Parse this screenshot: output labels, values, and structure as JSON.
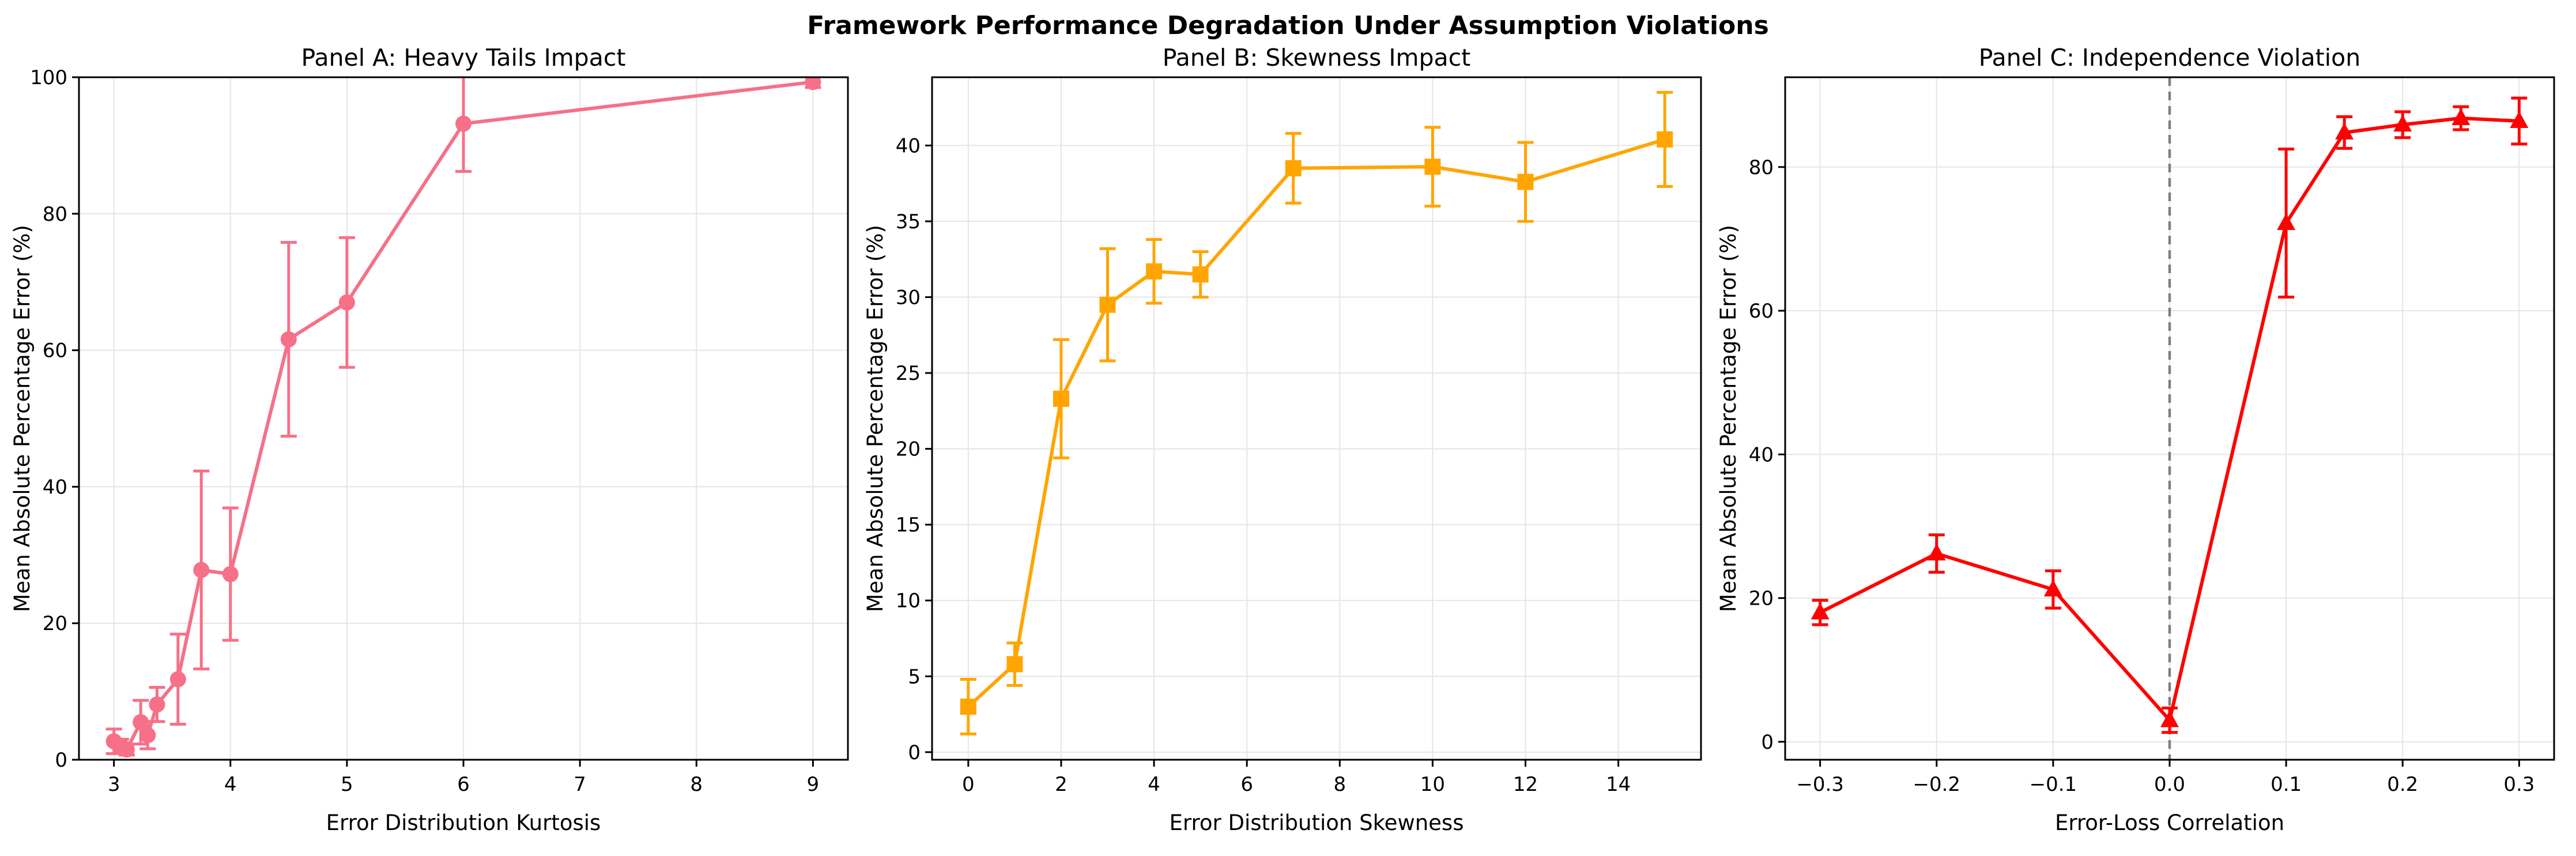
{
  "figure": {
    "title": "Framework Performance Degradation Under Assumption Violations",
    "background": "#FFFFFF",
    "text_color": "#000000",
    "grid_color": "#E5E5E5",
    "spine_color": "#000000"
  },
  "chart_data": [
    {
      "type": "line",
      "title": "Panel A: Heavy Tails Impact",
      "xlabel": "Error Distribution Kurtosis",
      "ylabel": "Mean Absolute Percentage Error (%)",
      "series_color": "#F67088",
      "marker": "circle",
      "grid": true,
      "x": [
        3.0,
        3.06,
        3.11,
        3.23,
        3.29,
        3.37,
        3.55,
        3.75,
        4.0,
        4.5,
        5.0,
        6.0,
        9.0
      ],
      "y": [
        2.7,
        2.0,
        1.5,
        5.5,
        3.6,
        8.1,
        11.8,
        27.8,
        27.2,
        61.6,
        67.0,
        93.2,
        99.3
      ],
      "yerr": [
        1.8,
        1.0,
        0.8,
        3.2,
        2.0,
        2.5,
        6.6,
        14.5,
        9.7,
        14.2,
        9.5,
        7.0,
        0.8
      ],
      "xlim": [
        2.7,
        9.3
      ],
      "ylim": [
        0,
        100
      ],
      "xticks": [
        3,
        4,
        5,
        6,
        7,
        8,
        9
      ],
      "xtick_labels": [
        "3",
        "4",
        "5",
        "6",
        "7",
        "8",
        "9"
      ],
      "yticks": [
        0,
        20,
        40,
        60,
        80,
        100
      ],
      "ytick_labels": [
        "0",
        "20",
        "40",
        "60",
        "80",
        "100"
      ]
    },
    {
      "type": "line",
      "title": "Panel B: Skewness Impact",
      "xlabel": "Error Distribution Skewness",
      "ylabel": "Mean Absolute Percentage Error (%)",
      "series_color": "#FFA500",
      "marker": "square",
      "grid": true,
      "x": [
        0,
        1,
        2,
        3,
        4,
        5,
        7,
        10,
        12,
        15
      ],
      "y": [
        3.0,
        5.8,
        23.3,
        29.5,
        31.7,
        31.5,
        38.5,
        38.6,
        37.6,
        40.4
      ],
      "yerr": [
        1.8,
        1.4,
        3.9,
        3.7,
        2.1,
        1.5,
        2.3,
        2.6,
        2.6,
        3.1
      ],
      "xlim": [
        -0.78,
        15.78
      ],
      "ylim": [
        -0.5,
        44.5
      ],
      "xticks": [
        0,
        2,
        4,
        6,
        8,
        10,
        12,
        14
      ],
      "xtick_labels": [
        "0",
        "2",
        "4",
        "6",
        "8",
        "10",
        "12",
        "14"
      ],
      "yticks": [
        0,
        5,
        10,
        15,
        20,
        25,
        30,
        35,
        40
      ],
      "ytick_labels": [
        "0",
        "5",
        "10",
        "15",
        "20",
        "25",
        "30",
        "35",
        "40"
      ]
    },
    {
      "type": "line",
      "title": "Panel C: Independence Violation",
      "xlabel": "Error-Loss Correlation",
      "ylabel": "Mean Absolute Percentage Error (%)",
      "series_color": "#FF0000",
      "marker": "triangle",
      "grid": true,
      "vline": {
        "x": 0,
        "color": "#7F7F7F",
        "style": "dashed"
      },
      "x": [
        -0.3,
        -0.2,
        -0.1,
        0.0,
        0.1,
        0.15,
        0.2,
        0.25,
        0.3
      ],
      "y": [
        18.0,
        26.2,
        21.2,
        3.0,
        72.2,
        84.8,
        85.9,
        86.8,
        86.4
      ],
      "yerr": [
        1.7,
        2.6,
        2.6,
        1.7,
        10.3,
        2.2,
        1.8,
        1.6,
        3.2
      ],
      "xlim": [
        -0.33,
        0.33
      ],
      "ylim": [
        -2.5,
        92.5
      ],
      "xticks": [
        -0.3,
        -0.2,
        -0.1,
        0.0,
        0.1,
        0.2,
        0.3
      ],
      "xtick_labels": [
        "−0.3",
        "−0.2",
        "−0.1",
        "0.0",
        "0.1",
        "0.2",
        "0.3"
      ],
      "yticks": [
        0,
        20,
        40,
        60,
        80
      ],
      "ytick_labels": [
        "0",
        "20",
        "40",
        "60",
        "80"
      ]
    }
  ]
}
